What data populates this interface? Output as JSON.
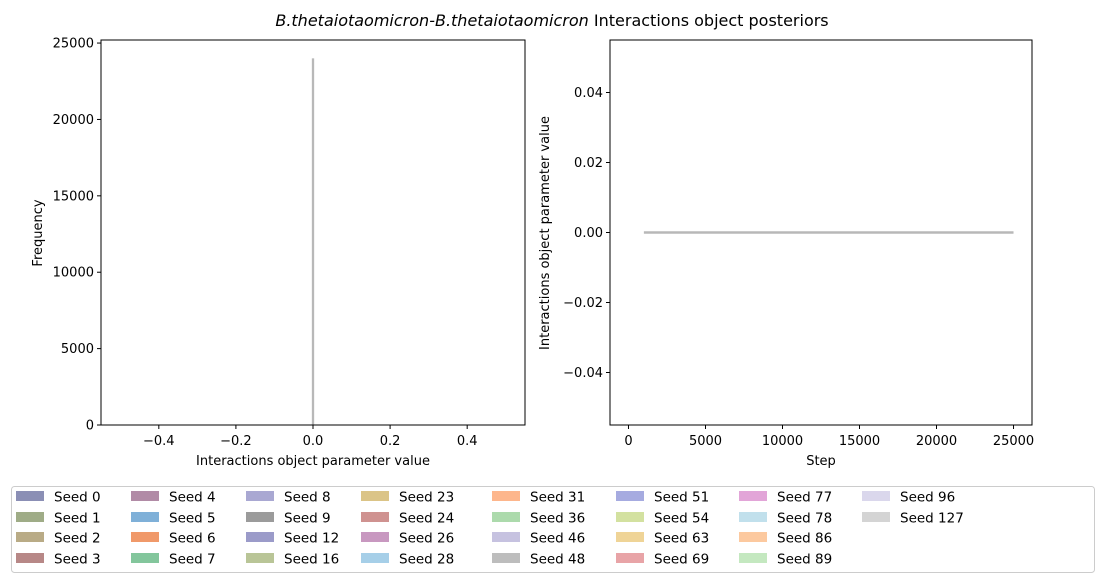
{
  "title": {
    "species_a": "B.thetaiotaomicron",
    "sep": "-",
    "species_b": "B.thetaiotaomicron",
    "rest": " Interactions object posteriors"
  },
  "chart_data": [
    {
      "type": "bar",
      "panel": "histogram",
      "xlabel": "Interactions object parameter value",
      "ylabel": "Frequency",
      "xlim": [
        -0.55,
        0.55
      ],
      "ylim": [
        0,
        25200
      ],
      "xticks": [
        -0.4,
        -0.2,
        0.0,
        0.2,
        0.4
      ],
      "xtick_labels": [
        "−0.4",
        "−0.2",
        "0.0",
        "0.2",
        "0.4"
      ],
      "yticks": [
        0,
        5000,
        10000,
        15000,
        20000,
        25000
      ],
      "ytick_labels": [
        "0",
        "5000",
        "10000",
        "15000",
        "20000",
        "25000"
      ],
      "bars": [
        {
          "x": 0.0,
          "width": 0.006,
          "value": 24000,
          "series": "Seed 127"
        }
      ]
    },
    {
      "type": "line",
      "panel": "trace",
      "xlabel": "Step",
      "ylabel": "Interactions object parameter value",
      "xlim": [
        -1200,
        26200
      ],
      "ylim": [
        -0.055,
        0.055
      ],
      "xticks": [
        0,
        5000,
        10000,
        15000,
        20000,
        25000
      ],
      "xtick_labels": [
        "0",
        "5000",
        "10000",
        "15000",
        "20000",
        "25000"
      ],
      "yticks": [
        -0.04,
        -0.02,
        0.0,
        0.02,
        0.04
      ],
      "ytick_labels": [
        "−0.04",
        "−0.02",
        "0.00",
        "0.02",
        "0.04"
      ],
      "series": [
        {
          "name": "Seed 127",
          "x": [
            1000,
            25000
          ],
          "y": [
            0.0,
            0.0
          ]
        }
      ]
    }
  ],
  "legend": {
    "placement": "bottom",
    "entries": [
      {
        "label": "Seed 0",
        "color": "#8b8fb5"
      },
      {
        "label": "Seed 1",
        "color": "#9fac87"
      },
      {
        "label": "Seed 2",
        "color": "#b9ab86"
      },
      {
        "label": "Seed 3",
        "color": "#b78887"
      },
      {
        "label": "Seed 4",
        "color": "#b18ba6"
      },
      {
        "label": "Seed 5",
        "color": "#7fb0d8"
      },
      {
        "label": "Seed 6",
        "color": "#f0996a"
      },
      {
        "label": "Seed 7",
        "color": "#83c69c"
      },
      {
        "label": "Seed 8",
        "color": "#a9a8d2"
      },
      {
        "label": "Seed 9",
        "color": "#9b9b9b"
      },
      {
        "label": "Seed 12",
        "color": "#9b9bc9"
      },
      {
        "label": "Seed 16",
        "color": "#b9c597"
      },
      {
        "label": "Seed 23",
        "color": "#dbc487"
      },
      {
        "label": "Seed 24",
        "color": "#cf9290"
      },
      {
        "label": "Seed 26",
        "color": "#c898c0"
      },
      {
        "label": "Seed 28",
        "color": "#a6cfe8"
      },
      {
        "label": "Seed 31",
        "color": "#fdb68c"
      },
      {
        "label": "Seed 36",
        "color": "#acdaac"
      },
      {
        "label": "Seed 46",
        "color": "#c6c2e0"
      },
      {
        "label": "Seed 48",
        "color": "#bdbdbd"
      },
      {
        "label": "Seed 51",
        "color": "#a6abe0"
      },
      {
        "label": "Seed 54",
        "color": "#d3e1a0"
      },
      {
        "label": "Seed 63",
        "color": "#efd497"
      },
      {
        "label": "Seed 69",
        "color": "#e8a4a7"
      },
      {
        "label": "Seed 77",
        "color": "#e2a5d8"
      },
      {
        "label": "Seed 78",
        "color": "#c1e0ec"
      },
      {
        "label": "Seed 86",
        "color": "#fcc99f"
      },
      {
        "label": "Seed 89",
        "color": "#c4e8c0"
      },
      {
        "label": "Seed 96",
        "color": "#dad7ec"
      },
      {
        "label": "Seed 127",
        "color": "#d4d4d4"
      }
    ]
  },
  "colors": {
    "mark": "#b8b8b8",
    "axis": "#000000"
  }
}
